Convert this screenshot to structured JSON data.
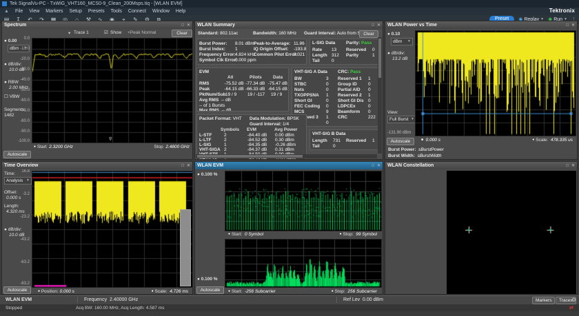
{
  "window": {
    "title": "Tek SignalVu-PC - TxWiG_VHT160_MCS0-9_Clean_200Msps.tiq - [WLAN EVM]",
    "brand": "Tektronix"
  },
  "menu": {
    "items": [
      "File",
      "View",
      "Markers",
      "Setup",
      "Presets",
      "Tools",
      "Connect",
      "Window",
      "Help"
    ]
  },
  "toolbar": {
    "icons": [
      {
        "name": "open-file-icon",
        "glyph": "▤"
      },
      {
        "name": "save-icon",
        "glyph": "↧"
      },
      {
        "name": "undo-icon",
        "glyph": "↶"
      },
      {
        "name": "redo-icon",
        "glyph": "↷"
      },
      {
        "name": "display-icon",
        "glyph": "▦"
      },
      {
        "name": "record-icon",
        "glyph": "◎"
      },
      {
        "name": "home-icon",
        "glyph": "⌂"
      },
      {
        "name": "tools-icon",
        "glyph": "⚒"
      },
      {
        "name": "waveform-icon",
        "glyph": "∿"
      },
      {
        "name": "play-circle-icon",
        "glyph": "◉"
      },
      {
        "name": "target-icon",
        "glyph": "⌖"
      },
      {
        "name": "edit-icon",
        "glyph": "✎"
      },
      {
        "name": "settings-icon",
        "glyph": "⚙"
      },
      {
        "name": "layout-icon",
        "glyph": "⧉"
      }
    ],
    "preset_label": "Preset",
    "replay_label": "Replay",
    "run_label": "Run"
  },
  "spectrum": {
    "title": "Spectrum",
    "trace_selector": "Trace 1",
    "show_label": "Show",
    "trace_mode": "+Peak Normal",
    "clear_label": "Clear",
    "ref_level": "0.00",
    "ref_unit": "dBm",
    "db_div_label": "dB/div:",
    "db_div": "10.0 dB",
    "rbw_label": "RBW",
    "rbw": "2.00 MHz",
    "vbw_label": "VBW",
    "segments_label": "Segments:",
    "segments": "1482",
    "autoscale_label": "Autoscale",
    "start_label": "Start",
    "start": "2.3200 GHz",
    "stop_label": "Stop",
    "stop": "2.4800 GHz",
    "y_labels": [
      "0.0",
      "-10.0",
      "-20.0",
      "-30.0",
      "-40.0",
      "-50.0",
      "-60.0",
      "-70.0",
      "-80.0",
      "-90.0",
      "-100.0"
    ]
  },
  "summary": {
    "title": "WLAN Summary",
    "standard_label": "Standard:",
    "standard": "802.11ac",
    "bandwidth_label": "Bandwidth:",
    "bandwidth": "160 MHz",
    "guard_label": "Guard Interval:",
    "guard": "Auto from SIG",
    "clear_label": "Clear",
    "burst_rows": [
      {
        "label": "Burst Power:",
        "value": "8.01 dBm"
      },
      {
        "label": "Burst Index:",
        "value": "1"
      },
      {
        "label": "Frequency Error:",
        "value": "4.824 kHz"
      },
      {
        "label": "Symbol Clk Error:",
        "value": "0.000 ppm"
      }
    ],
    "peak_rows": [
      {
        "label": "Peak-to-Average:",
        "value": "11.86 dB"
      },
      {
        "label": "IQ Origin Offset:",
        "value": "-193.87 dB"
      },
      {
        "label": "Common Pilot Error:",
        "value": "0.021 %"
      }
    ],
    "lsig": {
      "title": "L-SIG Data",
      "parity_label": "Parity:",
      "parity_value": "Pass",
      "left": [
        [
          "Rate",
          "13"
        ],
        [
          "Length",
          "312"
        ],
        [
          "Tail",
          "0"
        ]
      ],
      "right": [
        [
          "Reserved",
          "0"
        ],
        [
          "Parity",
          "1"
        ]
      ]
    },
    "evm": {
      "title": "EVM",
      "columns": [
        "All",
        "Pilots",
        "Data"
      ],
      "rows": [
        {
          "label": "RMS",
          "v": [
            "-75.52 dB",
            "-77.34 dB",
            "-75.47 dB"
          ]
        },
        {
          "label": "Peak",
          "v": [
            "-64.15 dB",
            "-66.33 dB",
            "-64.15 dB"
          ]
        },
        {
          "label": "PktNum/Sub",
          "v": [
            "19 / 9",
            "19 / -117",
            "19 / 9"
          ]
        }
      ],
      "avg_label": "Avg RMS",
      "avg_value": "-- dB",
      "bursts_line": "--   of 1    Bursts",
      "max_label": "Max RMS",
      "max_value": "-- dB"
    },
    "vht_a": {
      "title": "VHT-SIG A Data",
      "crc_label": "CRC:",
      "crc_value": "Pass",
      "left": [
        [
          "BW",
          "3"
        ],
        [
          "STBC",
          "0"
        ],
        [
          "Nsts",
          "0"
        ],
        [
          "TXOPPSNA",
          "1"
        ],
        [
          "Short GI",
          "0"
        ],
        [
          "FEC Coding",
          "0"
        ],
        [
          "MCS",
          "9"
        ],
        [
          "Reserved 3",
          "1"
        ],
        [
          "Tail",
          "0"
        ]
      ],
      "right": [
        [
          "Reserved 1",
          "1"
        ],
        [
          "Group ID",
          "0"
        ],
        [
          "Partial AID",
          "0"
        ],
        [
          "Reserved 2",
          "1"
        ],
        [
          "Short GI Dis",
          "0"
        ],
        [
          "LDPCEx",
          "0"
        ],
        [
          "Beamform",
          "0"
        ],
        [
          "CRC",
          "222"
        ]
      ]
    },
    "packet": {
      "format_label": "Packet Format:",
      "format": "VHT",
      "mod_label": "Data Modulation:",
      "mod": "BPSK",
      "gi_label": "Guard Interval:",
      "gi": "1/4",
      "columns": [
        "Symbols",
        "EVM",
        "Avg Power"
      ],
      "rows": [
        {
          "name": "L-STF",
          "sym": "2",
          "evm": "-84.40 dB",
          "pwr": "0.00 dBm"
        },
        {
          "name": "L-LTF",
          "sym": "2",
          "evm": "-84.52 dB",
          "pwr": "0.30 dBm"
        },
        {
          "name": "L-SIG",
          "sym": "1",
          "evm": "-84.35 dB",
          "pwr": "-0.26 dBm"
        },
        {
          "name": "VHT-SIGA",
          "sym": "2",
          "evm": "-84.37 dB",
          "pwr": "0.31 dBm"
        },
        {
          "name": "VHT-STF",
          "sym": "1",
          "evm": "-84.50 dB",
          "pwr": "0.00 dBm"
        },
        {
          "name": "VHT-LTF",
          "sym": "1",
          "evm": "-84.23 dB",
          "pwr": "-0.01 dBm"
        },
        {
          "name": "VHT-SIGB",
          "sym": "1",
          "evm": "-77.42 dB",
          "pwr": "0.11 dBm"
        }
      ]
    },
    "vht_b": {
      "title": "VHT-SIG B Data",
      "left": [
        [
          "Length",
          "731"
        ],
        [
          "Tail",
          "0"
        ]
      ],
      "right": [
        [
          "Reserved",
          "1"
        ]
      ]
    }
  },
  "pvt": {
    "title": "WLAN Power vs Time",
    "ref_level": "0.10",
    "ref_unit": "dBm",
    "db_div_label": "dB/div:",
    "db_div": "13.2 dB",
    "view_label": "View:",
    "view": "Full Burst",
    "bottom_scale": "-131.90 dBm",
    "autoscale_label": "Autoscale",
    "x_start": "0.000 s",
    "scale_label": "Scale:",
    "scale": "478.335 us",
    "burst_power_label": "Burst Power:",
    "burst_power": "sBurstPower",
    "burst_width_label": "Burst Width:",
    "burst_width": "sBurstWidth"
  },
  "timeov": {
    "title": "Time Overview",
    "time_label": "Time:",
    "time": "Analysis",
    "offset_label": "Offset:",
    "offset": "0.000 s",
    "length_label": "Length:",
    "length": "4.320 ms",
    "db_div_label": "dB/div:",
    "db_div": "10.0 dB",
    "autoscale_label": "Autoscale",
    "position_label": "Position:",
    "position": "0.000 s",
    "scale_label": "Scale:",
    "scale": "4.726 ms",
    "y_labels": [
      "16.8",
      "-3.2",
      "-23.2",
      "-43.2",
      "-63.2",
      "-83.2"
    ]
  },
  "evmp": {
    "title": "WLAN EVM",
    "top_ref": "0.100 %",
    "bottom_ref": "0.100 %",
    "autoscale_label": "Autoscale",
    "top_start_label": "Start:",
    "top_start": "0 Symbol",
    "top_stop_label": "Stop:",
    "top_stop": "99 Symbol",
    "bot_start_label": "Start:",
    "bot_start": "-256 Subcarrier",
    "bot_stop_label": "Stop:",
    "bot_stop": "256 Subcarrier"
  },
  "constellation": {
    "title": "WLAN Constellation"
  },
  "statusbar": {
    "mode": "WLAN EVM",
    "frequency_label": "Frequency",
    "frequency": "2.40000 GHz",
    "ref_lev_label": "Ref Lev",
    "ref_lev": "0.00 dBm",
    "markers_label": "Markers",
    "traces_label": "Traces",
    "state": "Stopped",
    "acq": "Acq BW: 160.00 MHz, Acq Length: 4.587 ms"
  },
  "plots": {
    "colors": {
      "yellow": "#f0e81e",
      "grid": "#2e2e2e",
      "grid_light": "#3a3a3a",
      "green": "#00dc5c",
      "green_dim": "#00a244",
      "orange": "#c8781e",
      "blue": "#3f8fd6",
      "red": "#d42020",
      "magenta": "#e818b8",
      "white": "#e8e8e8"
    },
    "pvt_full_lines": [
      0.44,
      0.46,
      0.49,
      0.6,
      0.63,
      0.655,
      0.68,
      0.71,
      0.86,
      0.97
    ],
    "tov_bursts": [
      [
        0.013,
        0.178
      ],
      [
        0.208,
        0.373
      ],
      [
        0.403,
        0.568
      ],
      [
        0.598,
        0.763
      ],
      [
        0.793,
        0.958
      ]
    ]
  }
}
